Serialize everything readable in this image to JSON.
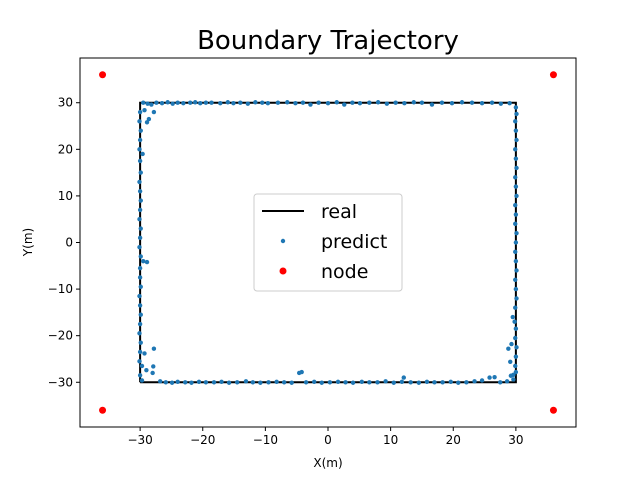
{
  "chart_data": {
    "type": "scatter",
    "title": "Boundary Trajectory",
    "xlabel": "X(m)",
    "ylabel": "Y(m)",
    "xlim": [
      -39.6,
      39.6
    ],
    "ylim": [
      -39.6,
      39.6
    ],
    "xticks": [
      -30,
      -20,
      -10,
      0,
      10,
      20,
      30
    ],
    "yticks": [
      -30,
      -20,
      -10,
      0,
      10,
      20,
      30
    ],
    "xtick_labels": [
      "−30",
      "−20",
      "−10",
      "0",
      "10",
      "20",
      "30"
    ],
    "ytick_labels": [
      "−30",
      "−20",
      "−10",
      "0",
      "10",
      "20",
      "30"
    ],
    "grid": false,
    "legend": {
      "position": "center",
      "entries": [
        "real",
        "predict",
        "node"
      ]
    },
    "colors": {
      "real": "#000000",
      "predict": "#1f77b4",
      "node": "#ff0000"
    },
    "series": [
      {
        "name": "real",
        "kind": "line",
        "points": [
          [
            -30,
            -30
          ],
          [
            30,
            -30
          ],
          [
            30,
            30
          ],
          [
            -30,
            30
          ],
          [
            -30,
            -30
          ]
        ]
      },
      {
        "name": "predict",
        "kind": "scatter",
        "points": [
          [
            -29.5,
            30.0
          ],
          [
            -28.8,
            29.8
          ],
          [
            -28.2,
            29.6
          ],
          [
            -27.4,
            30.0
          ],
          [
            -26.5,
            29.9
          ],
          [
            -25.6,
            30.1
          ],
          [
            -24.8,
            29.8
          ],
          [
            -24.0,
            30.0
          ],
          [
            -23.1,
            29.9
          ],
          [
            -22.0,
            30.0
          ],
          [
            -21.2,
            30.1
          ],
          [
            -20.4,
            29.9
          ],
          [
            -19.5,
            30.0
          ],
          [
            -18.6,
            30.0
          ],
          [
            -17.2,
            29.9
          ],
          [
            -16.0,
            30.1
          ],
          [
            -15.1,
            29.9
          ],
          [
            -14.0,
            30.0
          ],
          [
            -12.8,
            29.8
          ],
          [
            -11.6,
            30.1
          ],
          [
            -10.5,
            30.0
          ],
          [
            -9.6,
            29.9
          ],
          [
            -8.0,
            30.0
          ],
          [
            -6.5,
            30.1
          ],
          [
            -5.2,
            29.9
          ],
          [
            -4.0,
            30.0
          ],
          [
            -2.8,
            29.6
          ],
          [
            -1.5,
            30.0
          ],
          [
            0.0,
            29.9
          ],
          [
            1.4,
            30.1
          ],
          [
            2.6,
            29.6
          ],
          [
            3.9,
            30.0
          ],
          [
            5.1,
            29.9
          ],
          [
            6.6,
            30.0
          ],
          [
            8.0,
            30.1
          ],
          [
            9.4,
            29.8
          ],
          [
            10.8,
            30.0
          ],
          [
            12.2,
            29.9
          ],
          [
            13.7,
            30.1
          ],
          [
            15.0,
            30.0
          ],
          [
            16.6,
            29.6
          ],
          [
            18.2,
            30.0
          ],
          [
            19.8,
            29.9
          ],
          [
            21.4,
            30.1
          ],
          [
            23.0,
            30.0
          ],
          [
            24.6,
            29.9
          ],
          [
            26.2,
            30.0
          ],
          [
            27.6,
            29.8
          ],
          [
            29.0,
            29.9
          ],
          [
            -30.0,
            28.0
          ],
          [
            -30.1,
            26.0
          ],
          [
            -29.9,
            24.0
          ],
          [
            -30.0,
            22.0
          ],
          [
            -30.1,
            20.0
          ],
          [
            -29.6,
            19.0
          ],
          [
            -30.0,
            17.5
          ],
          [
            -29.9,
            15.0
          ],
          [
            -30.1,
            13.0
          ],
          [
            -30.0,
            11.0
          ],
          [
            -29.9,
            9.0
          ],
          [
            -30.0,
            7.0
          ],
          [
            -30.1,
            5.0
          ],
          [
            -29.9,
            3.0
          ],
          [
            -30.0,
            1.0
          ],
          [
            -30.1,
            -1.0
          ],
          [
            -29.9,
            -3.0
          ],
          [
            -29.5,
            -4.0
          ],
          [
            -28.9,
            -4.2
          ],
          [
            -30.0,
            -5.5
          ],
          [
            -30.0,
            -7.5
          ],
          [
            -29.9,
            -9.5
          ],
          [
            -30.1,
            -11.5
          ],
          [
            -30.0,
            -13.5
          ],
          [
            -29.9,
            -15.5
          ],
          [
            -30.0,
            -17.5
          ],
          [
            -30.1,
            -19.5
          ],
          [
            -29.9,
            -21.5
          ],
          [
            -30.0,
            -23.5
          ],
          [
            -29.3,
            -23.8
          ],
          [
            -27.8,
            -22.8
          ],
          [
            -30.1,
            -25.5
          ],
          [
            -29.7,
            -26.5
          ],
          [
            -29.0,
            -27.4
          ],
          [
            -27.9,
            -26.6
          ],
          [
            -28.0,
            -28.0
          ],
          [
            -30.0,
            -28.5
          ],
          [
            -29.7,
            -29.6
          ],
          [
            -28.6,
            26.5
          ],
          [
            -28.9,
            25.8
          ],
          [
            -29.3,
            28.4
          ],
          [
            -27.8,
            28.0
          ],
          [
            -26.8,
            -29.8
          ],
          [
            -25.9,
            -30.0
          ],
          [
            -24.9,
            -30.1
          ],
          [
            -24.0,
            -29.9
          ],
          [
            -22.8,
            -30.0
          ],
          [
            -21.8,
            -30.1
          ],
          [
            -20.6,
            -29.9
          ],
          [
            -19.5,
            -30.0
          ],
          [
            -18.2,
            -30.0
          ],
          [
            -17.0,
            -29.9
          ],
          [
            -15.8,
            -30.1
          ],
          [
            -14.5,
            -30.0
          ],
          [
            -13.1,
            -29.8
          ],
          [
            -12.0,
            -30.0
          ],
          [
            -10.8,
            -30.1
          ],
          [
            -9.5,
            -30.0
          ],
          [
            -8.2,
            -29.9
          ],
          [
            -7.0,
            -30.0
          ],
          [
            -5.8,
            -30.1
          ],
          [
            -4.6,
            -28.0
          ],
          [
            -4.2,
            -27.8
          ],
          [
            -3.5,
            -30.0
          ],
          [
            -2.2,
            -29.9
          ],
          [
            -1.0,
            -30.1
          ],
          [
            0.3,
            -30.0
          ],
          [
            1.6,
            -29.9
          ],
          [
            2.8,
            -30.0
          ],
          [
            4.0,
            -30.1
          ],
          [
            5.4,
            -29.9
          ],
          [
            6.6,
            -30.0
          ],
          [
            7.9,
            -30.0
          ],
          [
            9.2,
            -29.8
          ],
          [
            10.5,
            -30.1
          ],
          [
            11.8,
            -29.9
          ],
          [
            12.1,
            -29.0
          ],
          [
            13.2,
            -30.0
          ],
          [
            14.5,
            -30.1
          ],
          [
            15.8,
            -29.9
          ],
          [
            17.0,
            -30.0
          ],
          [
            18.3,
            -30.0
          ],
          [
            19.6,
            -29.9
          ],
          [
            20.8,
            -30.1
          ],
          [
            22.1,
            -30.0
          ],
          [
            23.4,
            -29.8
          ],
          [
            24.6,
            -29.6
          ],
          [
            25.8,
            -29.0
          ],
          [
            26.6,
            -28.9
          ],
          [
            27.5,
            -30.0
          ],
          [
            28.6,
            -29.8
          ],
          [
            29.2,
            -28.6
          ],
          [
            29.6,
            -29.4
          ],
          [
            30.0,
            29.0
          ],
          [
            30.1,
            27.6
          ],
          [
            29.9,
            26.0
          ],
          [
            30.0,
            24.0
          ],
          [
            30.1,
            22.0
          ],
          [
            29.9,
            20.0
          ],
          [
            30.0,
            18.0
          ],
          [
            30.1,
            16.0
          ],
          [
            29.9,
            14.0
          ],
          [
            30.0,
            12.0
          ],
          [
            30.1,
            10.0
          ],
          [
            29.9,
            8.0
          ],
          [
            30.0,
            6.0
          ],
          [
            29.9,
            4.0
          ],
          [
            30.1,
            2.0
          ],
          [
            30.0,
            0.0
          ],
          [
            29.9,
            -2.0
          ],
          [
            30.0,
            -4.0
          ],
          [
            30.1,
            -6.0
          ],
          [
            29.9,
            -8.0
          ],
          [
            30.0,
            -10.0
          ],
          [
            30.1,
            -12.0
          ],
          [
            29.9,
            -14.0
          ],
          [
            29.5,
            -16.0
          ],
          [
            29.8,
            -17.0
          ],
          [
            30.0,
            -18.5
          ],
          [
            29.9,
            -20.5
          ],
          [
            30.1,
            -22.5
          ],
          [
            29.3,
            -21.8
          ],
          [
            28.8,
            -22.8
          ],
          [
            30.0,
            -24.5
          ],
          [
            29.1,
            -25.6
          ],
          [
            29.9,
            -26.5
          ],
          [
            30.0,
            -27.8
          ],
          [
            29.6,
            -28.4
          ]
        ]
      },
      {
        "name": "node",
        "kind": "scatter",
        "points": [
          [
            -36,
            36
          ],
          [
            36,
            36
          ],
          [
            -36,
            -36
          ],
          [
            36,
            -36
          ]
        ]
      }
    ]
  }
}
